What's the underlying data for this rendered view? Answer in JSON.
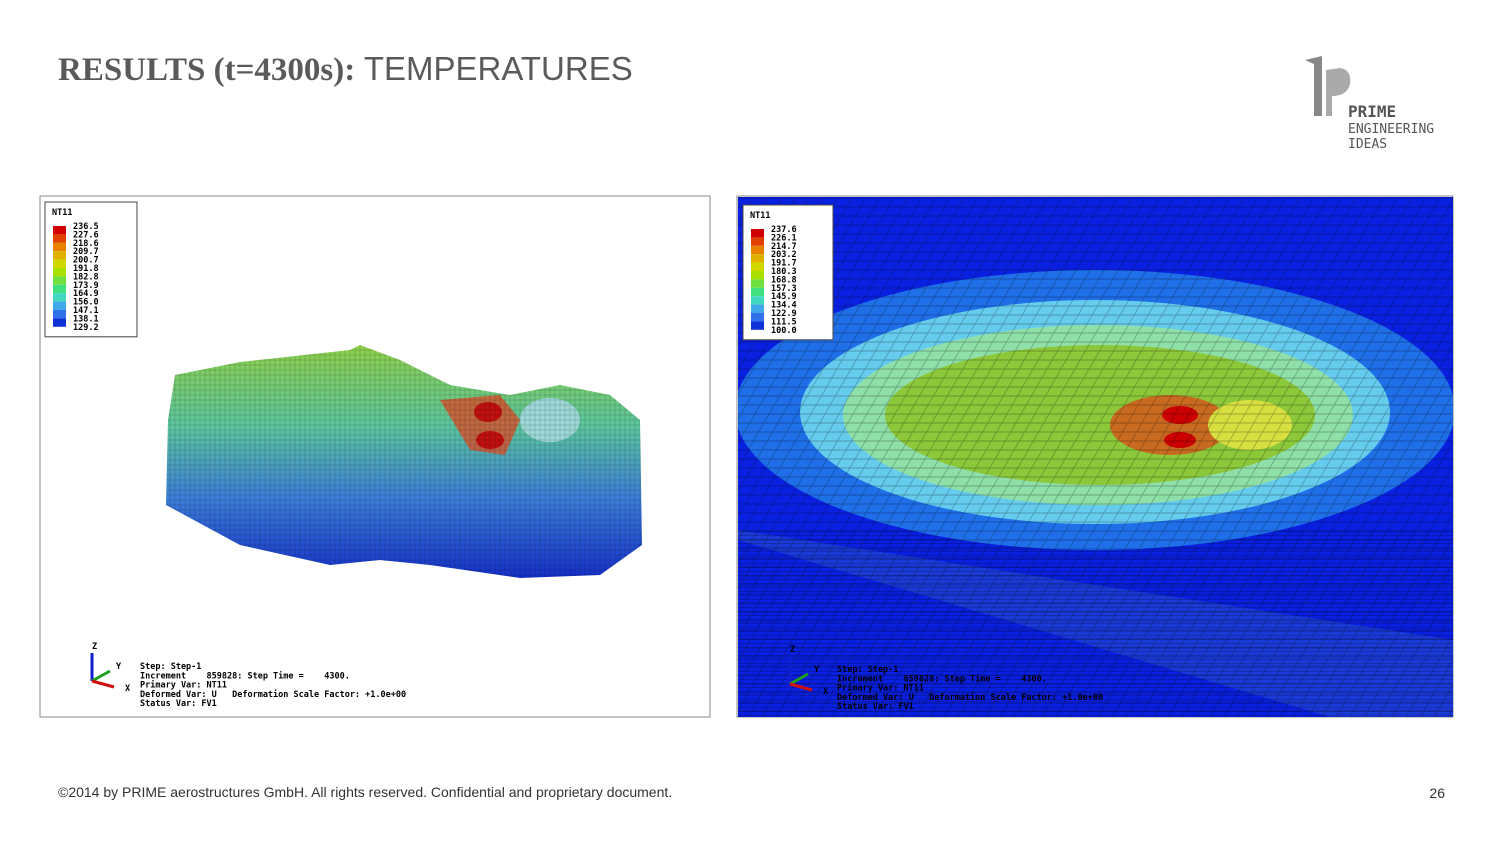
{
  "header": {
    "title_bold": "RESULTS (t=4300s):",
    "title_rest": "TEMPERATURES"
  },
  "logo": {
    "line1": "PRIME",
    "line2": "ENGINEERING",
    "line3": "IDEAS"
  },
  "panels": [
    {
      "legend": {
        "title": "NT11",
        "values": [
          "236.5",
          "227.6",
          "218.6",
          "209.7",
          "200.7",
          "191.8",
          "182.8",
          "173.9",
          "164.9",
          "156.0",
          "147.1",
          "138.1",
          "129.2"
        ]
      },
      "axes": [
        "Z",
        "Y",
        "X"
      ],
      "info": [
        "Step: Step-1",
        "Increment    859828: Step Time =    4300.",
        "Primary Var: NT11",
        "Deformed Var: U   Deformation Scale Factor: +1.0e+00",
        "Status Var: FV1"
      ]
    },
    {
      "legend": {
        "title": "NT11",
        "values": [
          "237.6",
          "226.1",
          "214.7",
          "203.2",
          "191.7",
          "180.3",
          "168.8",
          "157.3",
          "145.9",
          "134.4",
          "122.9",
          "111.5",
          "100.0"
        ]
      },
      "axes": [
        "Z",
        "Y",
        "X"
      ],
      "info": [
        "Step: Step-1",
        "Increment    859828: Step Time =    4300.",
        "Primary Var: NT11",
        "Deformed Var: U   Deformation Scale Factor: +1.0e+00",
        "Status Var: FV1"
      ]
    }
  ],
  "footer": {
    "text": "©2014 by PRIME aerostructures GmbH. All rights reserved. Confidential and proprietary document.",
    "page": "26"
  }
}
